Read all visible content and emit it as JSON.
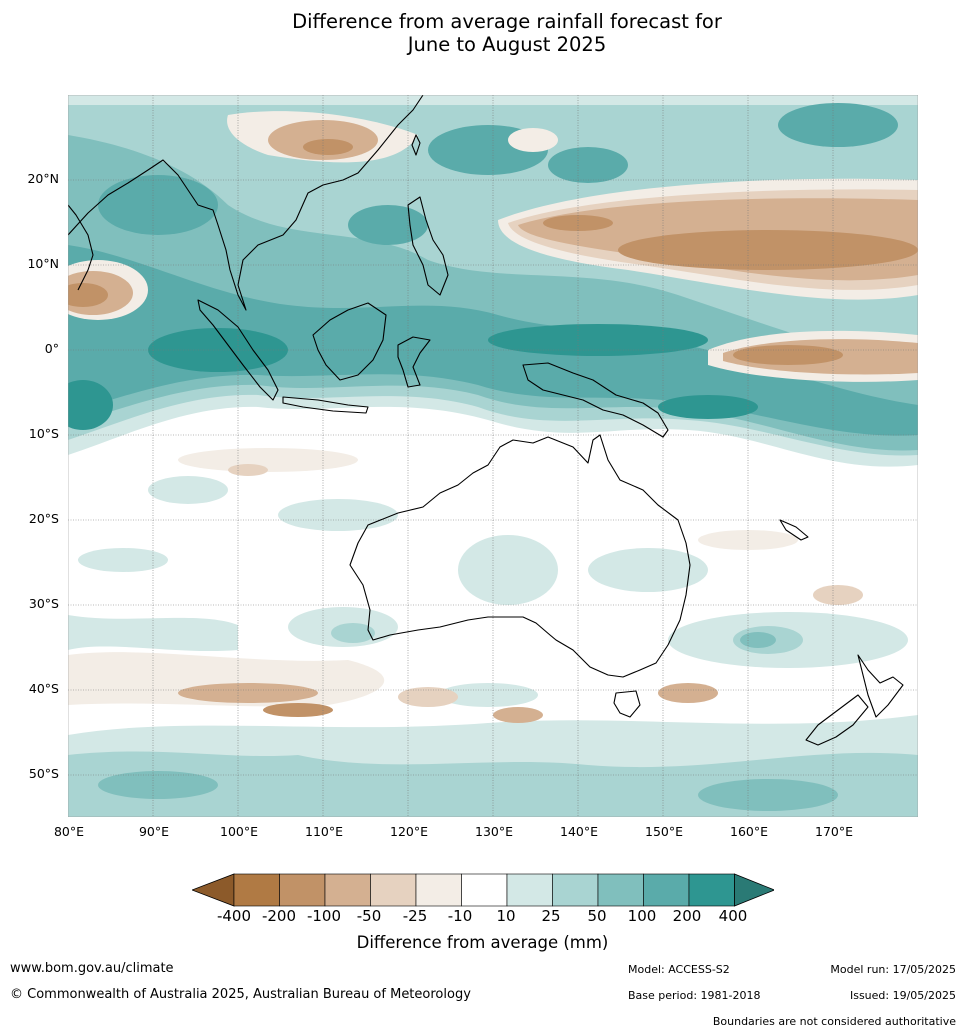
{
  "title": {
    "line1": "Difference from average rainfall forecast for",
    "line2": "June to August 2025"
  },
  "map": {
    "lat_labels": [
      "20°N",
      "10°N",
      "0°",
      "10°S",
      "20°S",
      "30°S",
      "40°S",
      "50°S"
    ],
    "lon_labels": [
      "80°E",
      "90°E",
      "100°E",
      "110°E",
      "120°E",
      "130°E",
      "140°E",
      "150°E",
      "160°E",
      "170°E"
    ],
    "extent": {
      "lon": [
        80,
        180
      ],
      "lat": [
        -55,
        30
      ]
    }
  },
  "colorbar": {
    "ticks": [
      "-400",
      "-200",
      "-100",
      "-50",
      "-25",
      "-10",
      "10",
      "25",
      "50",
      "100",
      "200",
      "400"
    ],
    "colors": [
      "#8c5a2a",
      "#b07a44",
      "#c19267",
      "#d4b091",
      "#e6d2c0",
      "#f3ede6",
      "#ffffff",
      "#d3e8e6",
      "#a9d4d2",
      "#80bfbd",
      "#5aabaa",
      "#2e9691",
      "#2a7a75"
    ],
    "label": "Difference from average (mm)"
  },
  "footer": {
    "url": "www.bom.gov.au/climate",
    "copyright": "© Commonwealth of Australia 2025, Australian Bureau of Meteorology",
    "model": "Model: ACCESS-S2",
    "base_period": "Base period: 1981-2018",
    "model_run": "Model run: 17/05/2025",
    "issued": "Issued: 19/05/2025",
    "disclaimer": "Boundaries are not considered authoritative"
  }
}
